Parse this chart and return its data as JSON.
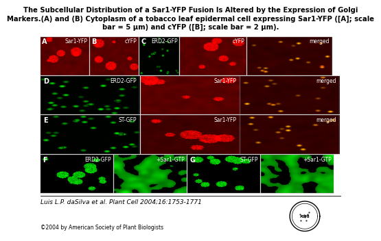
{
  "title": "The Subcellular Distribution of a Sar1-YFP Fusion Is Altered by the Expression of Golgi\nMarkers.(A) and (B) Cytoplasm of a tobacco leaf epidermal cell expressing Sar1-YFP ([A]; scale\nbar = 5 μm) and cYFP ([B]; scale bar = 2 μm).",
  "citation": "Luis L.P. daSilva et al. Plant Cell 2004;16:1753-1771",
  "copyright": "©2004 by American Society of Plant Biologists",
  "bg_color": "#ffffff",
  "row1_labels": [
    "A",
    "B",
    "C",
    "",
    ""
  ],
  "row1_sublabels": [
    "Sar1-YFP",
    "cYFP",
    "ERD2-GFP",
    "cYFP",
    "merged"
  ],
  "row2_labels": [
    "D",
    "",
    ""
  ],
  "row2_sublabels": [
    "ERD2-GFP",
    "Sar1-YFP",
    "merged"
  ],
  "row3_labels": [
    "E",
    "",
    ""
  ],
  "row3_sublabels": [
    "ST-GFP",
    "Sar1-YFP",
    "merged"
  ],
  "row4_labels": [
    "F",
    "",
    "G",
    ""
  ],
  "row4_sublabels": [
    "ERD2-GFP",
    "+Sar1-GTP",
    "ST-GFP",
    "+Sar1-GTP"
  ],
  "title_fontsize": 7.2,
  "label_fontsize": 5.5,
  "panel_label_fontsize": 7.0,
  "citation_fontsize": 6.5,
  "copyright_fontsize": 5.5
}
